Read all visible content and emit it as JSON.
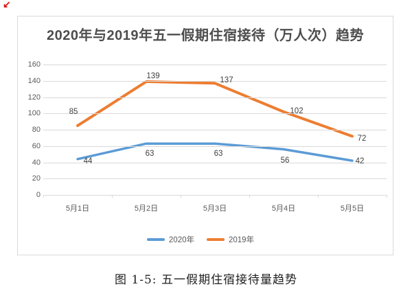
{
  "page": {
    "red_mark": "↙",
    "caption": "图 1-5: 五一假期住宿接待量趋势"
  },
  "chart_data": {
    "type": "line",
    "title": "2020年与2019年五一假期住宿接待（万人次）趋势",
    "categories": [
      "5月1日",
      "5月2日",
      "5月3日",
      "5月4日",
      "5月5日"
    ],
    "series": [
      {
        "name": "2020年",
        "color": "#5B9BD5",
        "stroke_width": 3.5,
        "values": [
          44,
          63,
          63,
          56,
          42
        ],
        "label_offsets": [
          [
            15,
            3
          ],
          [
            5,
            15
          ],
          [
            5,
            15
          ],
          [
            2,
            16
          ],
          [
            11,
            1
          ]
        ]
      },
      {
        "name": "2019年",
        "color": "#ED7D31",
        "stroke_width": 4,
        "values": [
          85,
          139,
          137,
          102,
          72
        ],
        "label_offsets": [
          [
            -6,
            -20
          ],
          [
            10,
            -8
          ],
          [
            17,
            -4
          ],
          [
            19,
            -1
          ],
          [
            14,
            3
          ]
        ]
      }
    ],
    "ylim": [
      0,
      160
    ],
    "y_ticks": [
      160,
      140,
      120,
      100,
      80,
      60,
      40,
      20,
      0
    ],
    "grid": true,
    "data_labels": true,
    "legend_position": "bottom",
    "colors": {
      "grid": "#D9D9D9",
      "axis_text": "#595959",
      "label_text": "#404040",
      "title_text": "#4D4D4D",
      "border": "#D9D9D9"
    }
  }
}
